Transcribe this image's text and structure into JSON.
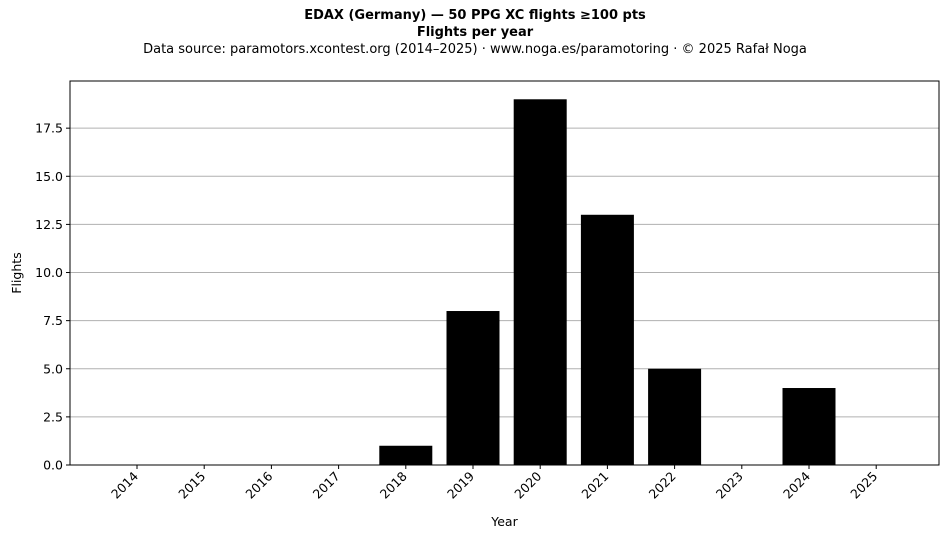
{
  "chart_data": {
    "type": "bar",
    "title": "EDAX (Germany)  —  50 PPG XC flights ≥100 pts",
    "subtitle": "Flights per year",
    "caption": "Data source: paramotors.xcontest.org (2014–2025)  ·  www.noga.es/paramotoring  ·  © 2025 Rafał Noga",
    "xlabel": "Year",
    "ylabel": "Flights",
    "categories": [
      "2014",
      "2015",
      "2016",
      "2017",
      "2018",
      "2019",
      "2020",
      "2021",
      "2022",
      "2023",
      "2024",
      "2025"
    ],
    "values": [
      0,
      0,
      0,
      0,
      1,
      8,
      19,
      13,
      5,
      0,
      4,
      0
    ],
    "ylim": [
      0,
      19.95
    ],
    "yticks": [
      0.0,
      2.5,
      5.0,
      7.5,
      10.0,
      12.5,
      15.0,
      17.5
    ],
    "ytick_labels": [
      "0.0",
      "2.5",
      "5.0",
      "7.5",
      "10.0",
      "12.5",
      "15.0",
      "17.5"
    ],
    "grid": "y",
    "bar_color": "#000000",
    "grid_color": "#b0b0b0"
  }
}
